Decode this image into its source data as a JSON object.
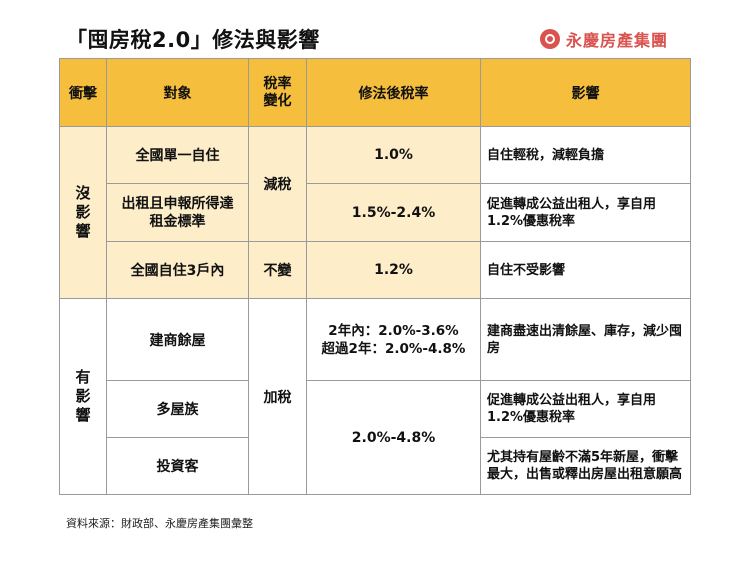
{
  "title": "「囤房稅2.0」修法與影響",
  "logo": {
    "text": "永慶房產集團",
    "icon": "brand-logo-icon",
    "color": "#d9534f"
  },
  "colors": {
    "header": "#f5be3c",
    "cream": "#fdedc9",
    "border": "#9a9a9a"
  },
  "table": {
    "headers": [
      "衝擊",
      "對象",
      "稅率變化",
      "修法後稅率",
      "影響"
    ],
    "impact_groups": [
      "沒影響",
      "有影響"
    ],
    "tax_changes": [
      "減稅",
      "不變",
      "加稅"
    ],
    "rows": [
      {
        "target": "全國單一自住",
        "rate": "1.0%",
        "effect": "自住輕稅，減輕負擔"
      },
      {
        "target": "出租且申報所得達租金標準",
        "rate": "1.5%-2.4%",
        "effect": "促進轉成公益出租人，享自用1.2%優惠稅率"
      },
      {
        "target": "全國自住3戶內",
        "rate": "1.2%",
        "effect": "自住不受影響"
      },
      {
        "target": "建商餘屋",
        "rate": "2年內：2.0%-3.6%\n超過2年：2.0%-4.8%",
        "effect": "建商盡速出清餘屋、庫存，減少囤房"
      },
      {
        "target": "多屋族",
        "rate": "2.0%-4.8%",
        "effect": "促進轉成公益出租人，享自用1.2%優惠稅率"
      },
      {
        "target": "投資客",
        "rate": "",
        "effect": "尤其持有屋齡不滿5年新屋，衝擊最大，出售或釋出房屋出租意願高"
      }
    ]
  },
  "source": "資料來源：財政部、永慶房產集團彙整"
}
